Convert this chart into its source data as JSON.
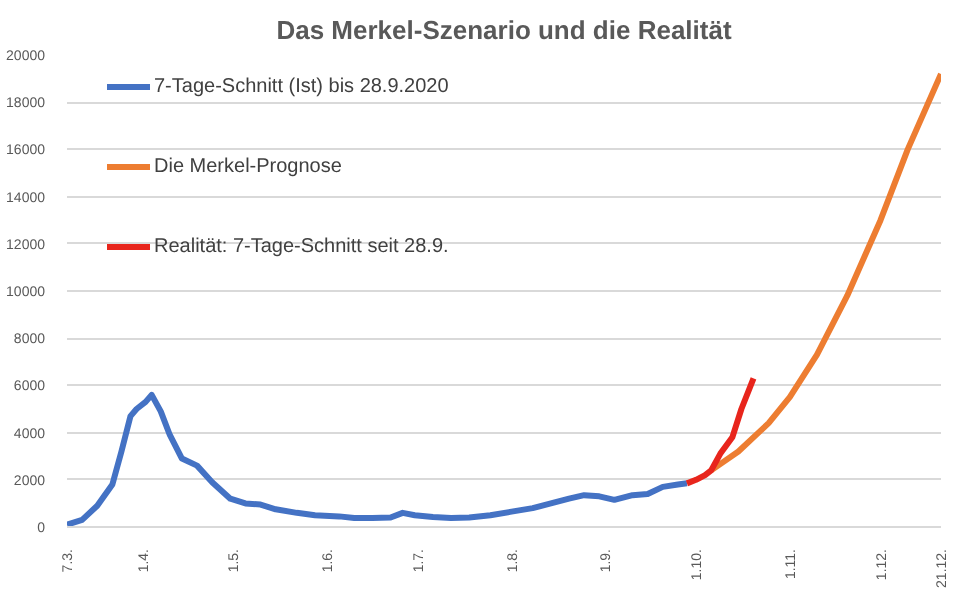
{
  "chart_data": {
    "type": "line",
    "title": "Das Merkel-Szenario und die Realität",
    "xlim": [
      "2020-03-07",
      "2020-12-21"
    ],
    "xticks": [
      {
        "value": "2020-03-07",
        "label": "7.3."
      },
      {
        "value": "2020-04-01",
        "label": "1.4."
      },
      {
        "value": "2020-05-01",
        "label": "1.5."
      },
      {
        "value": "2020-06-01",
        "label": "1.6."
      },
      {
        "value": "2020-07-01",
        "label": "1.7."
      },
      {
        "value": "2020-08-01",
        "label": "1.8."
      },
      {
        "value": "2020-09-01",
        "label": "1.9."
      },
      {
        "value": "2020-10-01",
        "label": "1.10."
      },
      {
        "value": "2020-11-01",
        "label": "1.11."
      },
      {
        "value": "2020-12-01",
        "label": "1.12."
      },
      {
        "value": "2020-12-21",
        "label": "21.12."
      }
    ],
    "ylim": [
      0,
      20000
    ],
    "yticks": [
      0,
      2000,
      4000,
      6000,
      8000,
      10000,
      12000,
      14000,
      16000,
      18000,
      20000
    ],
    "grid": "y",
    "legend": "left",
    "line_style": "solid",
    "series": [
      {
        "name": "7-Tage-Schnitt (Ist) bis 28.9.2020",
        "color": "#4472c4",
        "x": [
          "2020-03-07",
          "2020-03-12",
          "2020-03-17",
          "2020-03-22",
          "2020-03-25",
          "2020-03-28",
          "2020-03-30",
          "2020-04-02",
          "2020-04-04",
          "2020-04-07",
          "2020-04-10",
          "2020-04-14",
          "2020-04-19",
          "2020-04-24",
          "2020-04-30",
          "2020-05-05",
          "2020-05-10",
          "2020-05-15",
          "2020-05-22",
          "2020-05-28",
          "2020-06-05",
          "2020-06-10",
          "2020-06-16",
          "2020-06-22",
          "2020-06-26",
          "2020-06-30",
          "2020-07-06",
          "2020-07-12",
          "2020-07-18",
          "2020-07-25",
          "2020-08-01",
          "2020-08-08",
          "2020-08-14",
          "2020-08-20",
          "2020-08-25",
          "2020-08-30",
          "2020-09-04",
          "2020-09-10",
          "2020-09-15",
          "2020-09-20",
          "2020-09-25",
          "2020-09-28"
        ],
        "values": [
          100,
          300,
          900,
          1800,
          3200,
          4700,
          5000,
          5300,
          5600,
          4900,
          3900,
          2900,
          2600,
          1900,
          1200,
          1000,
          950,
          750,
          600,
          500,
          450,
          380,
          380,
          400,
          600,
          500,
          420,
          380,
          400,
          500,
          650,
          800,
          1000,
          1200,
          1350,
          1300,
          1150,
          1350,
          1400,
          1700,
          1800,
          1850
        ]
      },
      {
        "name": "Die Merkel-Prognose",
        "color": "#ed7d31",
        "x": [
          "2020-10-06",
          "2020-10-15",
          "2020-10-25",
          "2020-11-01",
          "2020-11-10",
          "2020-11-20",
          "2020-12-01",
          "2020-12-10",
          "2020-12-21"
        ],
        "values": [
          2400,
          3200,
          4400,
          5500,
          7300,
          9800,
          13000,
          16000,
          19200
        ]
      },
      {
        "name": "Realität: 7-Tage-Schnitt seit 28.9.",
        "color": "#e8251c",
        "x": [
          "2020-09-28",
          "2020-10-01",
          "2020-10-04",
          "2020-10-06",
          "2020-10-09",
          "2020-10-13",
          "2020-10-16",
          "2020-10-20"
        ],
        "values": [
          1850,
          2000,
          2200,
          2400,
          3100,
          3800,
          5000,
          6300
        ]
      }
    ]
  }
}
